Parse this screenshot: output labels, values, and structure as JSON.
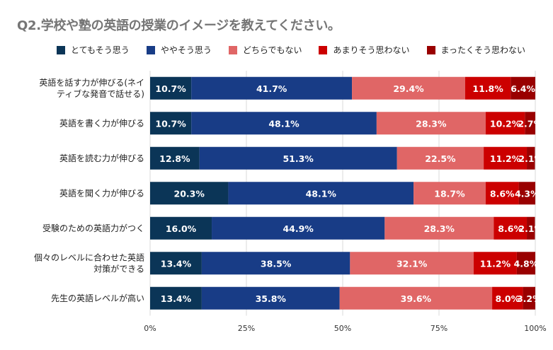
{
  "chart_data": {
    "type": "bar",
    "orientation": "horizontal",
    "stacked": true,
    "title": "Q2.学校や塾の英語の授業のイメージを教えてください。",
    "categories": [
      "英語を話す力が伸びる(ネイティブな発音で話せる)",
      "英語を書く力が伸びる",
      "英語を読む力が伸びる",
      "英語を聞く力が伸びる",
      "受験のための英語力がつく",
      "個々のレベルに合わせた英語対策ができる",
      "先生の英語レベルが高い"
    ],
    "category_lines": [
      [
        "英語を話す力が伸びる(ネイ",
        "ティブな発音で話せる)"
      ],
      [
        "英語を書く力が伸びる"
      ],
      [
        "英語を読む力が伸びる"
      ],
      [
        "英語を聞く力が伸びる"
      ],
      [
        "受験のための英語力がつく"
      ],
      [
        "個々のレベルに合わせた英語",
        "対策ができる"
      ],
      [
        "先生の英語レベルが高い"
      ]
    ],
    "series": [
      {
        "name": "とてもそう思う",
        "color": "#0b3557",
        "values": [
          10.7,
          10.7,
          12.8,
          20.3,
          16.0,
          13.4,
          13.4
        ]
      },
      {
        "name": "ややそう思う",
        "color": "#183c86",
        "values": [
          41.7,
          48.1,
          51.3,
          48.1,
          44.9,
          38.5,
          35.8
        ]
      },
      {
        "name": "どちらでもない",
        "color": "#e06666",
        "values": [
          29.4,
          28.3,
          22.5,
          18.7,
          28.3,
          32.1,
          39.6
        ]
      },
      {
        "name": "あまりそう思わない",
        "color": "#cc0000",
        "values": [
          11.8,
          10.2,
          11.2,
          8.6,
          8.6,
          11.2,
          8.0
        ]
      },
      {
        "name": "まったくそう思わない",
        "color": "#990000",
        "values": [
          6.4,
          2.7,
          2.1,
          4.3,
          2.1,
          4.8,
          3.2
        ]
      }
    ],
    "xlim": [
      0,
      100
    ],
    "xticks": [
      "0%",
      "25%",
      "50%",
      "75%",
      "100%"
    ],
    "legend_position": "top",
    "value_label_suffix": "%"
  }
}
